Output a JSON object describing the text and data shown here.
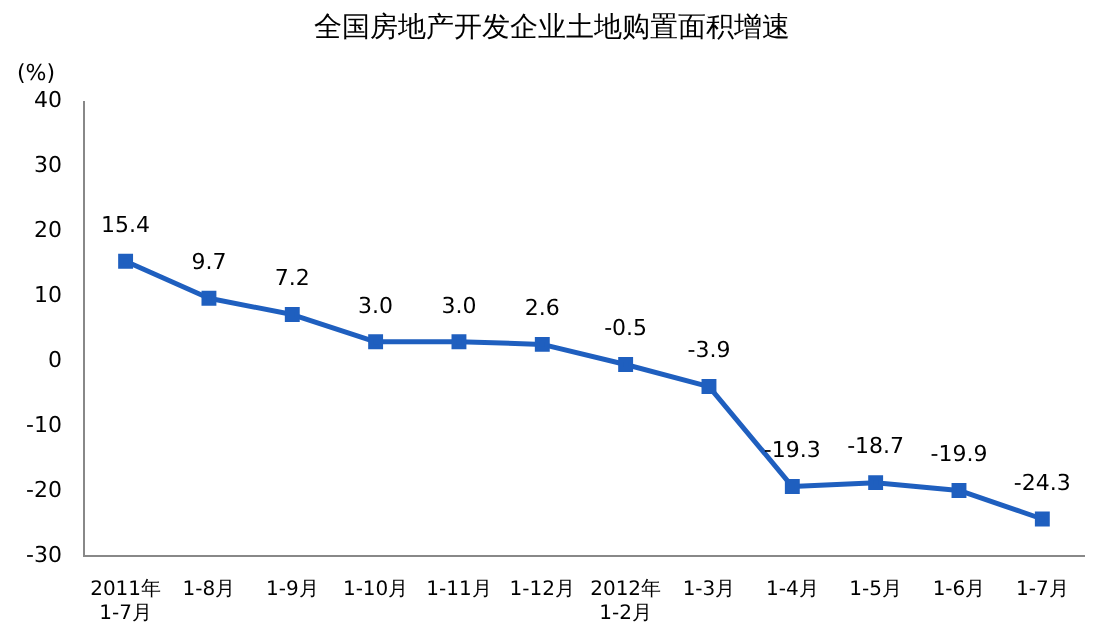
{
  "chart_data": {
    "type": "line",
    "title": "全国房地产开发企业土地购置面积增速",
    "ylabel": "(%)",
    "categories": [
      "2011年\n1-7月",
      "1-8月",
      "1-9月",
      "1-10月",
      "1-11月",
      "1-12月",
      "2012年\n1-2月",
      "1-3月",
      "1-4月",
      "1-5月",
      "1-6月",
      "1-7月"
    ],
    "series": [
      {
        "color": "#1f5fbf",
        "values": [
          15.4,
          9.7,
          7.2,
          3.0,
          3.0,
          2.6,
          -0.5,
          -3.9,
          -19.3,
          -18.7,
          -19.9,
          -24.3
        ],
        "value_labels": [
          "15.4",
          "9.7",
          "7.2",
          "3.0",
          "3.0",
          "2.6",
          "-0.5",
          "-3.9",
          "-19.3",
          "-18.7",
          "-19.9",
          "-24.3"
        ]
      }
    ],
    "ylim": [
      -30,
      40
    ],
    "yticks": [
      -30,
      -20,
      -10,
      0,
      10,
      20,
      30,
      40
    ],
    "grid": false,
    "legend": false,
    "marker": "square",
    "line_style": "solid"
  }
}
